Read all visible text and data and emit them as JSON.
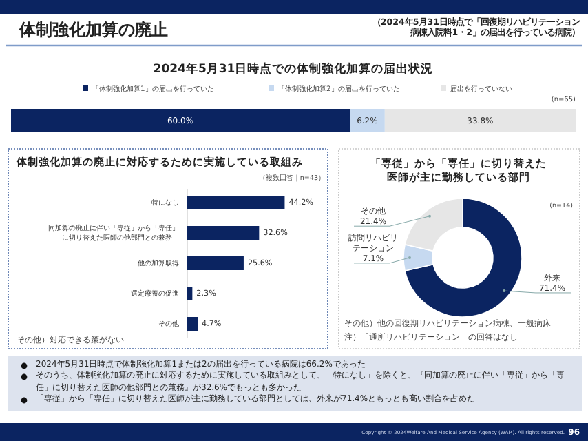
{
  "chart_data": [
    {
      "type": "bar",
      "orientation": "horizontal",
      "stacked": true,
      "title": "2024年5月31日時点での体制強化加算の届出状況",
      "categories": [
        null
      ],
      "legend": "top",
      "series": [
        {
          "name": "「体制強化加算1」の届出を行っていた",
          "color": "#0b2461",
          "values": [
            60.0
          ],
          "value_labels": [
            "60.0%"
          ]
        },
        {
          "name": "「体制強化加算2」の届出を行っていた",
          "color": "#c6d9f0",
          "values": [
            6.2
          ],
          "value_labels": [
            "6.2%"
          ]
        },
        {
          "name": "届出を行っていない",
          "color": "#e6e6e6",
          "values": [
            33.8
          ],
          "value_labels": [
            "33.8%"
          ]
        }
      ],
      "annotations": [
        "体制強化加算の廃止",
        "（2024年5月31日時点で「回復期リハビリテーション病棟入院料1・2」の届出を行っている病院）",
        "(n=65)"
      ]
    },
    {
      "type": "bar",
      "orientation": "horizontal",
      "title": "体制強化加算の廃止に対応するために実施している取組み",
      "color": "#0b2461",
      "categories": [
        "特になし",
        "同加算の廃止に伴い「専従」から「専任」に切り替えた医師の他部門との兼務",
        "他の加算取得",
        "選定療養の促進",
        "その他"
      ],
      "values": [
        44.2,
        32.6,
        25.6,
        2.3,
        4.7
      ],
      "value_labels": [
        "44.2%",
        "32.6%",
        "25.6%",
        "2.3%",
        "4.7%"
      ],
      "annotations": [
        "（複数回答｜n=43）",
        "その他）対応できる策がない"
      ]
    },
    {
      "type": "donut",
      "title": "「専従」から「専任」に切り替えた医師が主に勤務している部門",
      "categories": [
        "外来",
        "訪問リハビリテーション",
        "その他"
      ],
      "values": [
        71.4,
        7.1,
        21.4
      ],
      "value_labels": [
        "71.4%",
        "7.1%",
        "21.4%"
      ],
      "colors": [
        "#0b2461",
        "#c6d9f0",
        "#e6e6e6"
      ],
      "annotations": [
        "(n=14)",
        "その他）他の回復期リハビリテーション病棟、一般病床",
        "注）「通所リハビリテーション」の回答はなし",
        "2024年5月31日時点で体制強化加算1または2の届出を行っている病院は66.2%であった",
        "そのうち、体制強化加算の廃止に対応するために実施している取組みとして、「特になし」を除くと、『同加算の廃止に伴い「専従」から「専任」に切り替えた医師の他部門との兼務』が32.6%でもっとも多かった",
        "「専従」から「専任」に切り替えた医師が主に勤務している部門としては、外来が71.4%ともっとも高い割合を占めた",
        "Copyright © 2024Welfare And Medical Service Agency (WAM). All rights reserved.",
        "96"
      ]
    }
  ]
}
